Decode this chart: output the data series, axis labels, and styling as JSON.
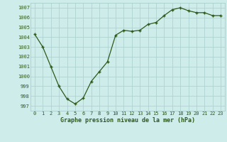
{
  "x": [
    0,
    1,
    2,
    3,
    4,
    5,
    6,
    7,
    8,
    9,
    10,
    11,
    12,
    13,
    14,
    15,
    16,
    17,
    18,
    19,
    20,
    21,
    22,
    23
  ],
  "y": [
    1004.3,
    1003.0,
    1001.0,
    999.0,
    997.7,
    997.2,
    997.8,
    999.5,
    1000.5,
    1001.5,
    1004.2,
    1004.7,
    1004.6,
    1004.7,
    1005.3,
    1005.5,
    1006.2,
    1006.8,
    1007.0,
    1006.7,
    1006.5,
    1006.5,
    1006.2,
    1006.2
  ],
  "title": "Graphe pression niveau de la mer (hPa)",
  "ylim": [
    996.5,
    1007.5
  ],
  "xlim": [
    -0.5,
    23.5
  ],
  "line_color": "#2d5a1b",
  "marker_color": "#2d5a1b",
  "bg_color": "#ceecea",
  "grid_color": "#aacfcc",
  "label_color": "#2d5a1b",
  "title_color": "#2d5a1b",
  "yticks": [
    997,
    998,
    999,
    1000,
    1001,
    1002,
    1003,
    1004,
    1005,
    1006,
    1007
  ],
  "xticks": [
    0,
    1,
    2,
    3,
    4,
    5,
    6,
    7,
    8,
    9,
    10,
    11,
    12,
    13,
    14,
    15,
    16,
    17,
    18,
    19,
    20,
    21,
    22,
    23
  ]
}
